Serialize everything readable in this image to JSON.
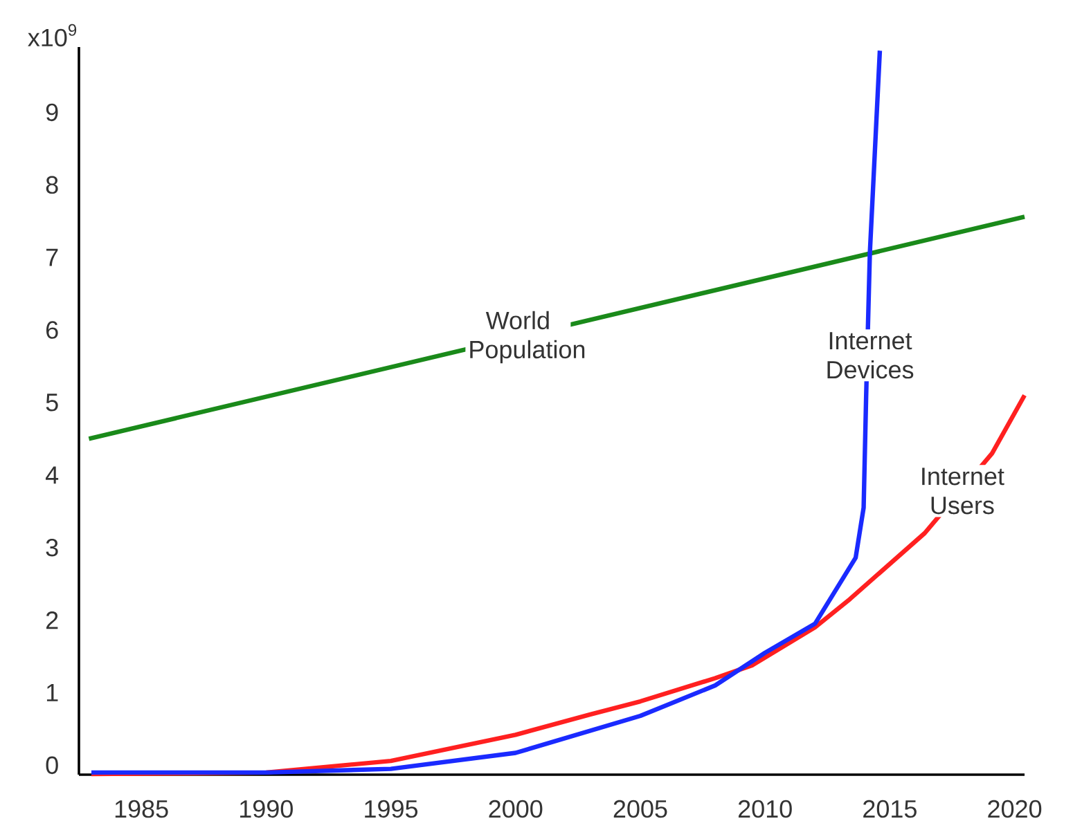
{
  "chart_data": {
    "type": "line",
    "xlim": [
      1982.5,
      2020.4
    ],
    "ylim": [
      -0.13,
      9.9
    ],
    "xticks": [
      1985,
      1990,
      1995,
      2000,
      2005,
      2010,
      2015,
      2020
    ],
    "yticks": [
      0,
      1,
      2,
      3,
      4,
      5,
      6,
      7,
      8,
      9
    ],
    "grid": false,
    "line_style": "solid",
    "marker": "none",
    "series": [
      {
        "color": "#1a8a1a",
        "x": [
          1982.9,
          2020.4
        ],
        "values": [
          4.5,
          7.56
        ]
      },
      {
        "color": "#ff2020",
        "x": [
          1983,
          1990,
          1995,
          2000,
          2003,
          2005,
          2008,
          2009.5,
          2012,
          2013.4,
          2016.4,
          2019.1,
          2020.4
        ],
        "values": [
          -0.12,
          -0.1,
          0.06,
          0.42,
          0.7,
          0.88,
          1.2,
          1.38,
          1.9,
          2.29,
          3.2,
          4.3,
          5.1
        ]
      },
      {
        "color": "#1a2aff",
        "x": [
          1983,
          1990,
          1995,
          2000,
          2005,
          2008,
          2010,
          2012,
          2013.63,
          2013.95,
          2014.05,
          2014.2,
          2014.6
        ],
        "values": [
          -0.1,
          -0.1,
          -0.05,
          0.17,
          0.68,
          1.1,
          1.55,
          1.95,
          2.86,
          3.55,
          5.08,
          7.06,
          9.85
        ]
      }
    ],
    "annotations": [
      "x10$^{9}$",
      {
        "text": "World Population",
        "x": 2000.1,
        "y": 5.9
      },
      {
        "text": "Internet Devices",
        "x": 2014.2,
        "y": 5.65
      },
      {
        "text": "Internet Users",
        "x": 2017.9,
        "y": 3.78
      }
    ]
  }
}
